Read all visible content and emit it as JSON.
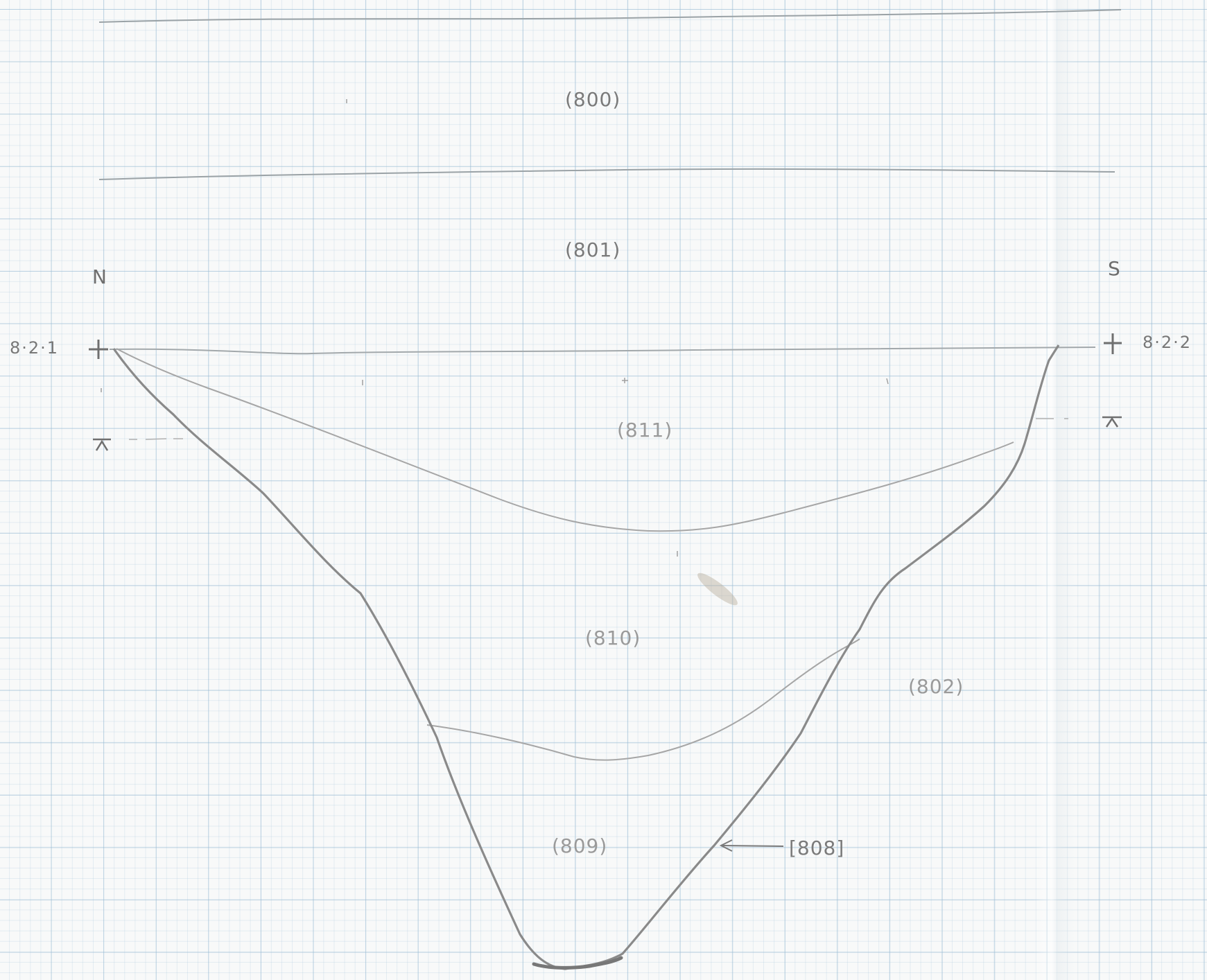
{
  "sheet": {
    "direction_left": "N",
    "direction_right": "S",
    "datum_left": "8·2·1",
    "datum_right": "8·2·2"
  },
  "contexts": {
    "c800": "(800)",
    "c801": "(801)",
    "c811": "(811)",
    "c810": "(810)",
    "c802": "(802)",
    "c809": "(809)",
    "cut808": "[808]"
  },
  "colors": {
    "pencil": "#8e8e8e",
    "pencil_dark": "#7c7c7c",
    "pencil_light": "#b2b2b2",
    "grid": "#a9c7db"
  }
}
